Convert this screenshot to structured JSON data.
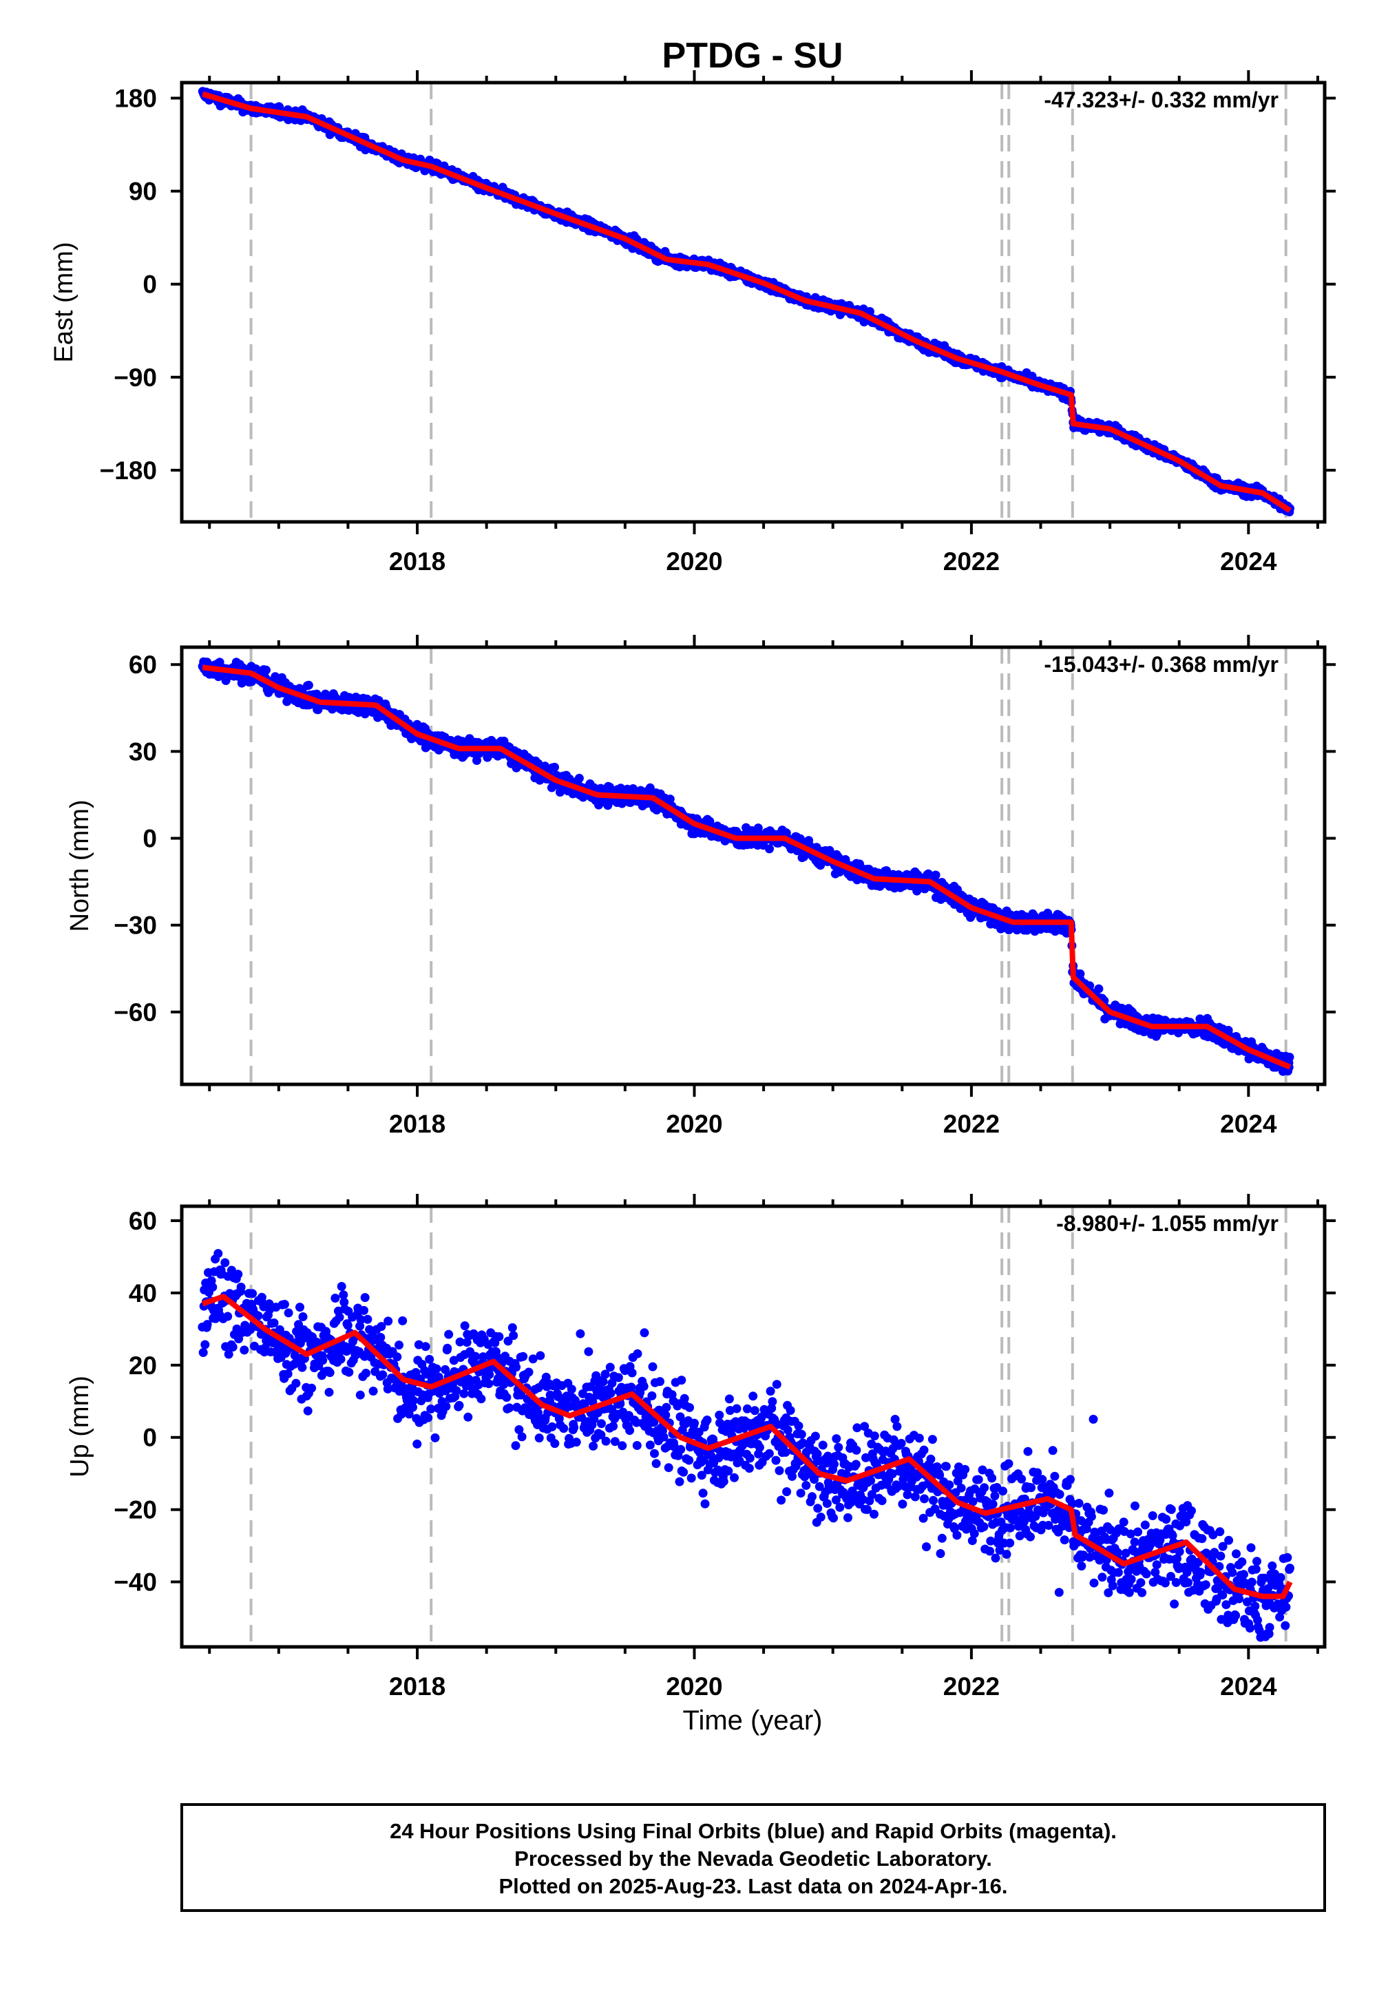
{
  "chart_data": {
    "type": "scatter",
    "title": "PTDG - SU",
    "xlabel": "Time (year)",
    "xlim": [
      2016.3,
      2024.55
    ],
    "x_ticks": [
      "2018",
      "2020",
      "2022",
      "2024"
    ],
    "x_minor_step": 0.5,
    "grid": false,
    "event_lines": [
      2016.8,
      2018.1,
      2022.22,
      2022.27,
      2022.73,
      2024.27
    ],
    "colors": {
      "points": "#0000ff",
      "model": "#ff0000",
      "event_lines": "#bbbbbb",
      "frame": "#000000"
    },
    "footer": [
      "24 Hour Positions Using Final Orbits (blue) and Rapid Orbits (magenta).",
      "Processed by the Nevada Geodetic Laboratory.",
      "Plotted on 2025-Aug-23. Last data on 2024-Apr-16."
    ],
    "panels": [
      {
        "ylabel": "East (mm)",
        "rate": "-47.323+/- 0.332 mm/yr",
        "ylim": [
          -230,
          195
        ],
        "yticks": [
          180,
          90,
          0,
          -90,
          -180
        ],
        "ytick_labels": [
          "180",
          "90",
          "0",
          "−90",
          "−180"
        ],
        "noise": 2.5,
        "model": [
          [
            2016.45,
            184
          ],
          [
            2016.8,
            170
          ],
          [
            2017.2,
            162
          ],
          [
            2017.6,
            138
          ],
          [
            2017.9,
            120
          ],
          [
            2018.1,
            114
          ],
          [
            2018.5,
            93
          ],
          [
            2019.0,
            68
          ],
          [
            2019.5,
            44
          ],
          [
            2019.8,
            24
          ],
          [
            2020.1,
            19
          ],
          [
            2020.5,
            1
          ],
          [
            2020.8,
            -16
          ],
          [
            2021.2,
            -28
          ],
          [
            2021.6,
            -55
          ],
          [
            2021.9,
            -72
          ],
          [
            2022.2,
            -84
          ],
          [
            2022.5,
            -98
          ],
          [
            2022.72,
            -107
          ],
          [
            2022.735,
            -135
          ],
          [
            2023.0,
            -140
          ],
          [
            2023.5,
            -171
          ],
          [
            2023.8,
            -195
          ],
          [
            2024.1,
            -202
          ],
          [
            2024.3,
            -219
          ]
        ]
      },
      {
        "ylabel": "North (mm)",
        "rate": "-15.043+/- 0.368 mm/yr",
        "ylim": [
          -85,
          66
        ],
        "yticks": [
          60,
          30,
          0,
          -30,
          -60
        ],
        "ytick_labels": [
          "60",
          "30",
          "0",
          "−30",
          "−60"
        ],
        "noise": 1.6,
        "model": [
          [
            2016.45,
            59
          ],
          [
            2016.8,
            57
          ],
          [
            2017.0,
            52
          ],
          [
            2017.3,
            47
          ],
          [
            2017.7,
            46
          ],
          [
            2018.0,
            36
          ],
          [
            2018.3,
            31
          ],
          [
            2018.6,
            31
          ],
          [
            2019.0,
            20
          ],
          [
            2019.3,
            15
          ],
          [
            2019.7,
            14
          ],
          [
            2020.0,
            5
          ],
          [
            2020.3,
            0
          ],
          [
            2020.65,
            0
          ],
          [
            2021.0,
            -8
          ],
          [
            2021.3,
            -14
          ],
          [
            2021.7,
            -15
          ],
          [
            2022.0,
            -24
          ],
          [
            2022.3,
            -29
          ],
          [
            2022.72,
            -29
          ],
          [
            2022.735,
            -48
          ],
          [
            2023.0,
            -60
          ],
          [
            2023.3,
            -65
          ],
          [
            2023.7,
            -65
          ],
          [
            2024.0,
            -73
          ],
          [
            2024.3,
            -79
          ]
        ]
      },
      {
        "ylabel": "Up (mm)",
        "rate": "-8.980+/- 1.055 mm/yr",
        "ylim": [
          -58,
          64
        ],
        "yticks": [
          60,
          40,
          20,
          0,
          -20,
          -40
        ],
        "ytick_labels": [
          "60",
          "40",
          "20",
          "0",
          "−20",
          "−40"
        ],
        "noise": 6.0,
        "model": [
          [
            2016.45,
            37
          ],
          [
            2016.6,
            39
          ],
          [
            2016.9,
            30
          ],
          [
            2017.2,
            23
          ],
          [
            2017.55,
            29
          ],
          [
            2017.9,
            16
          ],
          [
            2018.1,
            14
          ],
          [
            2018.55,
            21
          ],
          [
            2018.9,
            9
          ],
          [
            2019.1,
            6
          ],
          [
            2019.55,
            12
          ],
          [
            2019.9,
            0
          ],
          [
            2020.1,
            -3
          ],
          [
            2020.55,
            3
          ],
          [
            2020.9,
            -10
          ],
          [
            2021.1,
            -12
          ],
          [
            2021.55,
            -6
          ],
          [
            2021.9,
            -18
          ],
          [
            2022.1,
            -21
          ],
          [
            2022.55,
            -17
          ],
          [
            2022.72,
            -20
          ],
          [
            2022.75,
            -27
          ],
          [
            2023.1,
            -35
          ],
          [
            2023.55,
            -29
          ],
          [
            2023.9,
            -42
          ],
          [
            2024.1,
            -44
          ],
          [
            2024.25,
            -44
          ],
          [
            2024.3,
            -40
          ]
        ]
      }
    ]
  }
}
